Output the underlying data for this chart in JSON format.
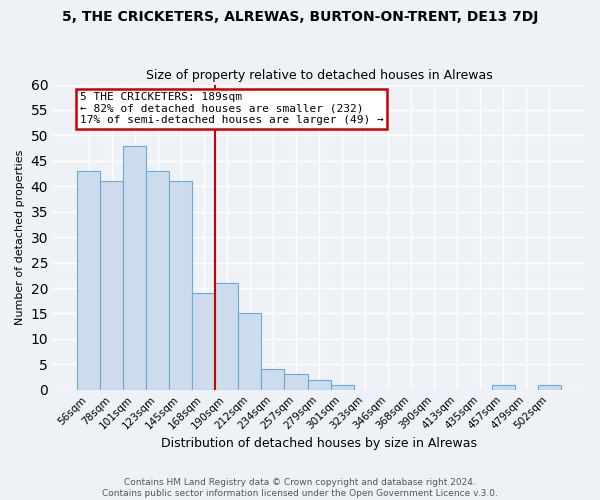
{
  "title": "5, THE CRICKETERS, ALREWAS, BURTON-ON-TRENT, DE13 7DJ",
  "subtitle": "Size of property relative to detached houses in Alrewas",
  "xlabel": "Distribution of detached houses by size in Alrewas",
  "ylabel": "Number of detached properties",
  "bar_labels": [
    "56sqm",
    "78sqm",
    "101sqm",
    "123sqm",
    "145sqm",
    "168sqm",
    "190sqm",
    "212sqm",
    "234sqm",
    "257sqm",
    "279sqm",
    "301sqm",
    "323sqm",
    "346sqm",
    "368sqm",
    "390sqm",
    "413sqm",
    "435sqm",
    "457sqm",
    "479sqm",
    "502sqm"
  ],
  "bar_values": [
    43,
    41,
    48,
    43,
    41,
    19,
    21,
    15,
    4,
    3,
    2,
    1,
    0,
    0,
    0,
    0,
    0,
    0,
    1,
    0,
    1
  ],
  "bar_color": "#ccdcec",
  "bar_edge_color": "#6aaad4",
  "vline_x_index": 6,
  "vline_color": "#cc0000",
  "annotation_line1": "5 THE CRICKETERS: 189sqm",
  "annotation_line2": "← 82% of detached houses are smaller (232)",
  "annotation_line3": "17% of semi-detached houses are larger (49) →",
  "annotation_box_color": "#cc0000",
  "ylim": [
    0,
    60
  ],
  "yticks": [
    0,
    5,
    10,
    15,
    20,
    25,
    30,
    35,
    40,
    45,
    50,
    55,
    60
  ],
  "footer1": "Contains HM Land Registry data © Crown copyright and database right 2024.",
  "footer2": "Contains public sector information licensed under the Open Government Licence v.3.0.",
  "background_color": "#eef2f7",
  "grid_color": "#ffffff",
  "title_fontsize": 10,
  "subtitle_fontsize": 9,
  "xlabel_fontsize": 9,
  "ylabel_fontsize": 8,
  "tick_fontsize": 7.5,
  "footer_fontsize": 6.5
}
